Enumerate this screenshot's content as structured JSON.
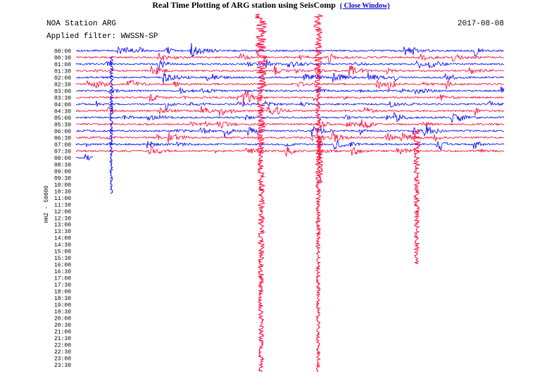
{
  "header": {
    "title": "Real Time Plotting of ARG station using SeisComp",
    "close_link": "( Close Window)"
  },
  "plot": {
    "station": "NOA Station ARG",
    "date": "2017-08-08",
    "filter": "Applied filter: WWSSN-SP",
    "channel": "HHZ - 50000",
    "times": [
      "00:00",
      "00:30",
      "01:00",
      "01:30",
      "02:00",
      "02:30",
      "03:00",
      "03:30",
      "04:00",
      "04:30",
      "05:00",
      "05:30",
      "06:00",
      "06:30",
      "07:00",
      "07:30",
      "08:00",
      "08:30",
      "09:00",
      "09:30",
      "10:00",
      "10:30",
      "11:00",
      "11:30",
      "12:00",
      "12:30",
      "13:00",
      "13:30",
      "14:00",
      "14:30",
      "15:00",
      "15:30",
      "16:00",
      "16:30",
      "17:00",
      "17:30",
      "18:00",
      "18:30",
      "19:00",
      "19:30",
      "20:00",
      "20:30",
      "21:00",
      "21:30",
      "22:00",
      "22:30",
      "23:00",
      "23:30"
    ]
  }
}
